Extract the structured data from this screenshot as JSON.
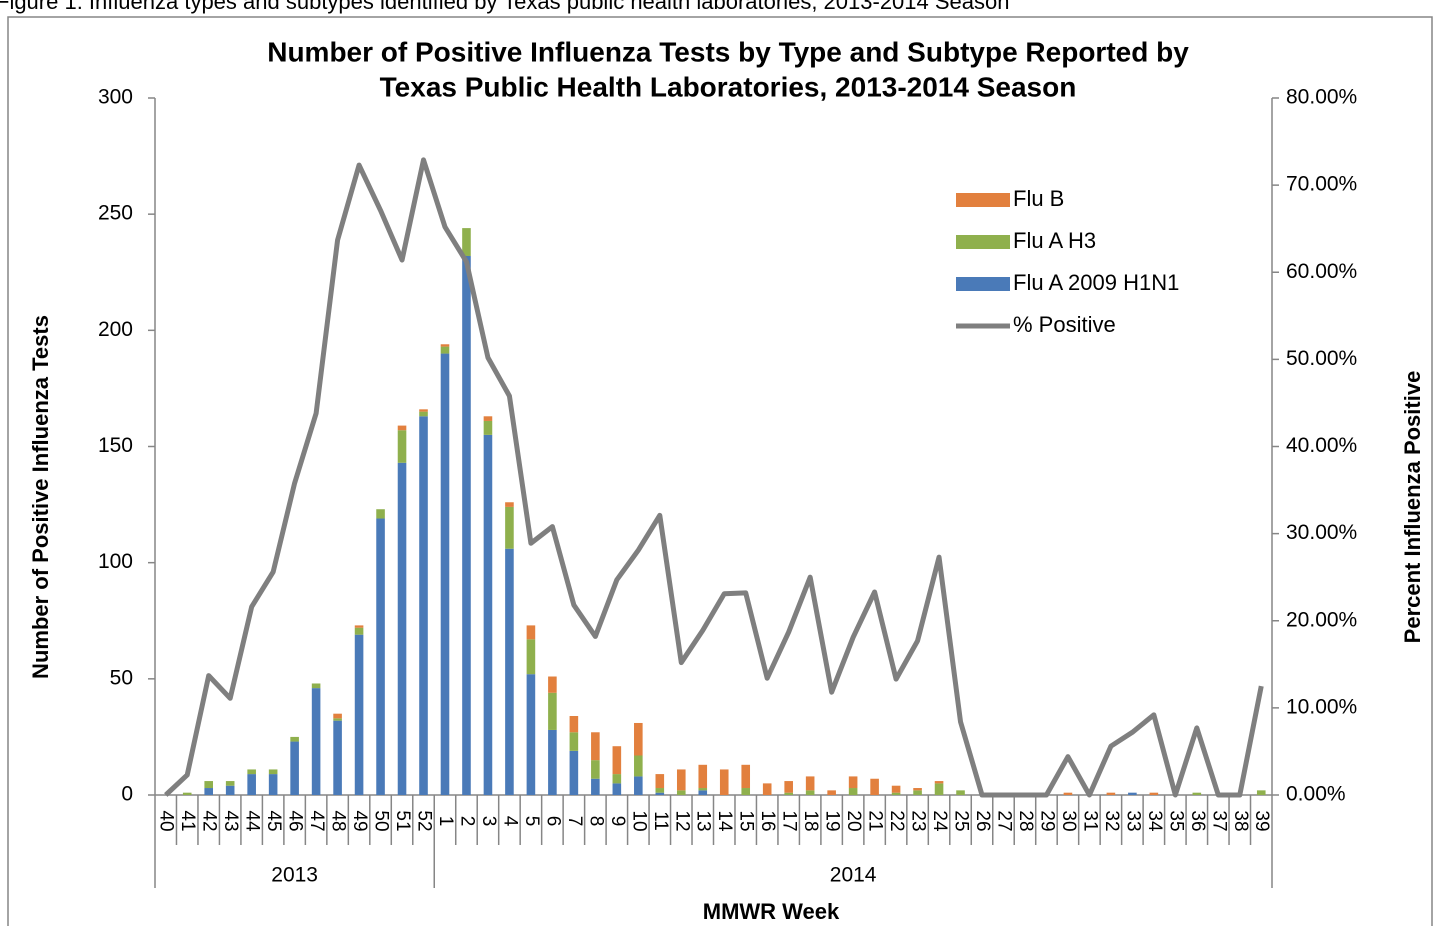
{
  "caption": "Figure 1: Influenza types and subtypes identified by Texas public health laboratories, 2013-2014 Season",
  "chart_data": {
    "type": "bar",
    "stacked": true,
    "title": [
      "Number of Positive Influenza Tests by Type and Subtype Reported by",
      "Texas Public Health Laboratories, 2013-2014 Season"
    ],
    "x_label": "MMWR Week",
    "y_label": "Number of Positive Influenza Tests",
    "y2_label": "Percent Influenza Positive",
    "categories": [
      "40",
      "41",
      "42",
      "43",
      "44",
      "45",
      "46",
      "47",
      "48",
      "49",
      "50",
      "51",
      "52",
      "1",
      "2",
      "3",
      "4",
      "5",
      "6",
      "7",
      "8",
      "9",
      "10",
      "11",
      "12",
      "13",
      "14",
      "15",
      "16",
      "17",
      "18",
      "19",
      "20",
      "21",
      "22",
      "23",
      "24",
      "25",
      "26",
      "27",
      "28",
      "29",
      "30",
      "31",
      "32",
      "33",
      "34",
      "35",
      "36",
      "37",
      "38",
      "39"
    ],
    "category_groups": [
      {
        "label": "2013",
        "count": 13
      },
      {
        "label": "2014",
        "count": 39
      }
    ],
    "series": [
      {
        "name": "Flu A 2009 H1N1",
        "color": "#4a7ab8",
        "values": [
          0,
          0,
          3,
          4,
          9,
          9,
          23,
          46,
          32,
          69,
          119,
          143,
          163,
          190,
          232,
          155,
          106,
          52,
          28,
          19,
          7,
          5,
          8,
          1,
          0,
          2,
          0,
          0,
          0,
          0,
          0,
          0,
          0,
          0,
          0,
          0,
          0,
          0,
          0,
          0,
          0,
          0,
          0,
          0,
          0,
          1,
          0,
          0,
          0,
          0,
          0,
          0
        ]
      },
      {
        "name": "Flu A H3",
        "color": "#8fb04d",
        "values": [
          0,
          1,
          3,
          2,
          2,
          2,
          2,
          2,
          1,
          3,
          4,
          14,
          2,
          3,
          12,
          6,
          18,
          15,
          16,
          8,
          8,
          4,
          9,
          2,
          2,
          1,
          0,
          3,
          0,
          1,
          2,
          0,
          3,
          0,
          1,
          2,
          5,
          2,
          0,
          0,
          0,
          0,
          0,
          0,
          0,
          0,
          0,
          0,
          1,
          0,
          0,
          2
        ]
      },
      {
        "name": "Flu B",
        "color": "#e2803e",
        "values": [
          0,
          0,
          0,
          0,
          0,
          0,
          0,
          0,
          2,
          1,
          0,
          2,
          1,
          1,
          0,
          2,
          2,
          6,
          7,
          7,
          12,
          12,
          14,
          6,
          9,
          10,
          11,
          10,
          5,
          5,
          6,
          2,
          5,
          7,
          3,
          1,
          1,
          0,
          0,
          0,
          0,
          0,
          1,
          0,
          1,
          0,
          1,
          0,
          0,
          0,
          0,
          0
        ]
      },
      {
        "name": "% Positive",
        "type": "line",
        "axis": "y2",
        "color": "#7f7f7f",
        "values": [
          0,
          2.3,
          13.7,
          11.1,
          21.6,
          25.6,
          35.8,
          43.8,
          63.7,
          72.3,
          67.1,
          61.4,
          72.9,
          65.2,
          61.2,
          50.2,
          45.8,
          28.9,
          30.8,
          21.8,
          18.2,
          24.7,
          28.1,
          32.1,
          15.2,
          18.9,
          23.1,
          23.2,
          13.4,
          18.7,
          25.0,
          11.8,
          18.1,
          23.3,
          13.3,
          17.7,
          27.3,
          8.4,
          0,
          0,
          0,
          0,
          4.4,
          0,
          5.6,
          7.2,
          9.2,
          0,
          7.7,
          0,
          0,
          12.5
        ]
      }
    ],
    "legend_order": [
      2,
      1,
      0,
      3
    ],
    "ylim": [
      0,
      300
    ],
    "yticks": [
      0,
      50,
      100,
      150,
      200,
      250,
      300
    ],
    "y2lim": [
      0,
      80
    ],
    "y2ticks": [
      {
        "value": 0,
        "label": "0.00%"
      },
      {
        "value": 10,
        "label": "10.00%"
      },
      {
        "value": 20,
        "label": "20.00%"
      },
      {
        "value": 30,
        "label": "30.00%"
      },
      {
        "value": 40,
        "label": "40.00%"
      },
      {
        "value": 50,
        "label": "50.00%"
      },
      {
        "value": 60,
        "label": "60.00%"
      },
      {
        "value": 70,
        "label": "70.00%"
      },
      {
        "value": 80,
        "label": "80.00%"
      }
    ],
    "legend": "upper right"
  }
}
